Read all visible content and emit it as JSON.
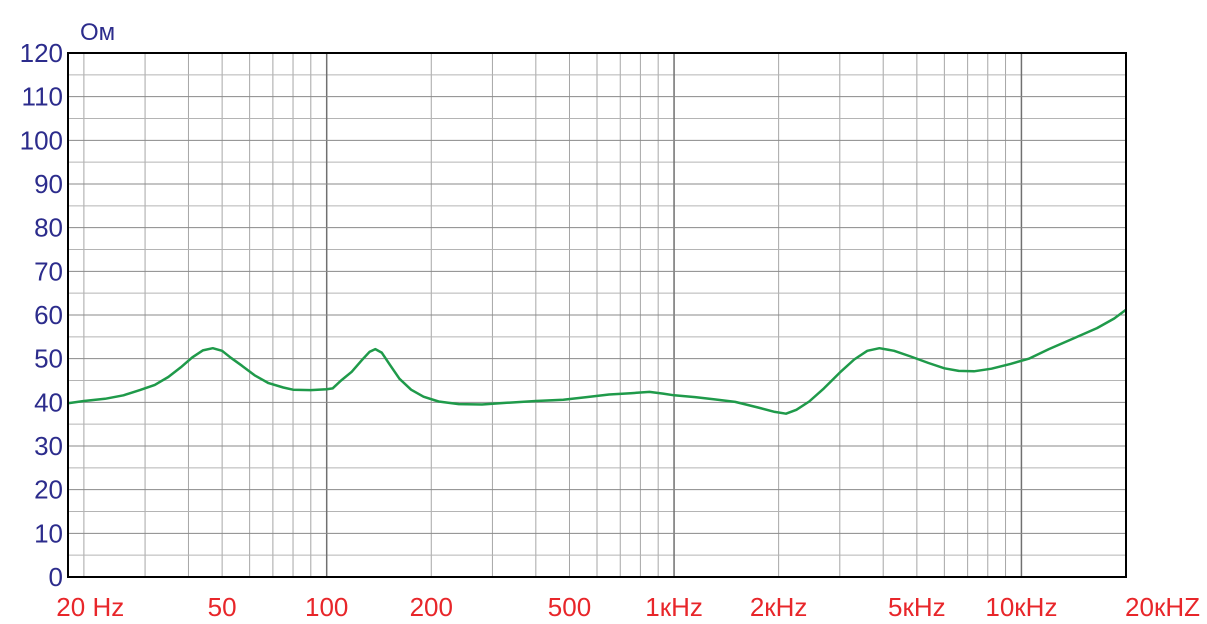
{
  "chart_data": {
    "type": "line",
    "title": "",
    "xlabel": "",
    "ylabel": "Ом",
    "x_scale": "log",
    "xlim": [
      18,
      20000
    ],
    "ylim": [
      0,
      120
    ],
    "grid": true,
    "y_ticks": [
      {
        "value": 0,
        "label": "0"
      },
      {
        "value": 10,
        "label": "10"
      },
      {
        "value": 20,
        "label": "20"
      },
      {
        "value": 30,
        "label": "30"
      },
      {
        "value": 40,
        "label": "40"
      },
      {
        "value": 50,
        "label": "50"
      },
      {
        "value": 60,
        "label": "60"
      },
      {
        "value": 70,
        "label": "70"
      },
      {
        "value": 80,
        "label": "80"
      },
      {
        "value": 90,
        "label": "90"
      },
      {
        "value": 100,
        "label": "100"
      },
      {
        "value": 110,
        "label": "110"
      },
      {
        "value": 120,
        "label": "120"
      }
    ],
    "x_ticks": [
      {
        "value": 22,
        "label": "20 Hz"
      },
      {
        "value": 50,
        "label": "50"
      },
      {
        "value": 100,
        "label": "100"
      },
      {
        "value": 200,
        "label": "200"
      },
      {
        "value": 500,
        "label": "500"
      },
      {
        "value": 1000,
        "label": "1кHz"
      },
      {
        "value": 2000,
        "label": "2кHz"
      },
      {
        "value": 5000,
        "label": "5кHz"
      },
      {
        "value": 10000,
        "label": "10кHz"
      },
      {
        "value": 20000,
        "label": "20кHZ"
      }
    ],
    "series": [
      {
        "color": "#1f9a4a",
        "points": [
          [
            18,
            39.8
          ],
          [
            20,
            40.3
          ],
          [
            23,
            40.8
          ],
          [
            26,
            41.6
          ],
          [
            29,
            42.8
          ],
          [
            32,
            44.0
          ],
          [
            35,
            45.8
          ],
          [
            38,
            48.0
          ],
          [
            41,
            50.3
          ],
          [
            44,
            51.9
          ],
          [
            47,
            52.4
          ],
          [
            50,
            51.8
          ],
          [
            53,
            50.2
          ],
          [
            57,
            48.4
          ],
          [
            62,
            46.2
          ],
          [
            68,
            44.4
          ],
          [
            75,
            43.4
          ],
          [
            80,
            42.9
          ],
          [
            90,
            42.8
          ],
          [
            100,
            43.0
          ],
          [
            104,
            43.2
          ],
          [
            110,
            45.0
          ],
          [
            118,
            47.0
          ],
          [
            126,
            49.6
          ],
          [
            133,
            51.6
          ],
          [
            138,
            52.2
          ],
          [
            144,
            51.4
          ],
          [
            152,
            48.6
          ],
          [
            162,
            45.4
          ],
          [
            175,
            42.9
          ],
          [
            190,
            41.3
          ],
          [
            210,
            40.2
          ],
          [
            240,
            39.6
          ],
          [
            280,
            39.5
          ],
          [
            330,
            39.9
          ],
          [
            400,
            40.3
          ],
          [
            480,
            40.6
          ],
          [
            560,
            41.2
          ],
          [
            650,
            41.8
          ],
          [
            750,
            42.1
          ],
          [
            850,
            42.4
          ],
          [
            930,
            42.0
          ],
          [
            1000,
            41.6
          ],
          [
            1150,
            41.2
          ],
          [
            1300,
            40.7
          ],
          [
            1500,
            40.1
          ],
          [
            1750,
            38.8
          ],
          [
            1950,
            37.8
          ],
          [
            2100,
            37.4
          ],
          [
            2250,
            38.3
          ],
          [
            2450,
            40.2
          ],
          [
            2700,
            43.2
          ],
          [
            3000,
            46.8
          ],
          [
            3300,
            49.8
          ],
          [
            3600,
            51.8
          ],
          [
            3900,
            52.4
          ],
          [
            4300,
            51.8
          ],
          [
            4800,
            50.5
          ],
          [
            5400,
            49.0
          ],
          [
            6000,
            47.8
          ],
          [
            6600,
            47.2
          ],
          [
            7300,
            47.1
          ],
          [
            8200,
            47.7
          ],
          [
            9300,
            48.8
          ],
          [
            10500,
            50.0
          ],
          [
            12000,
            52.2
          ],
          [
            14000,
            54.5
          ],
          [
            16500,
            57.0
          ],
          [
            18500,
            59.2
          ],
          [
            20000,
            61.2
          ]
        ]
      }
    ]
  }
}
